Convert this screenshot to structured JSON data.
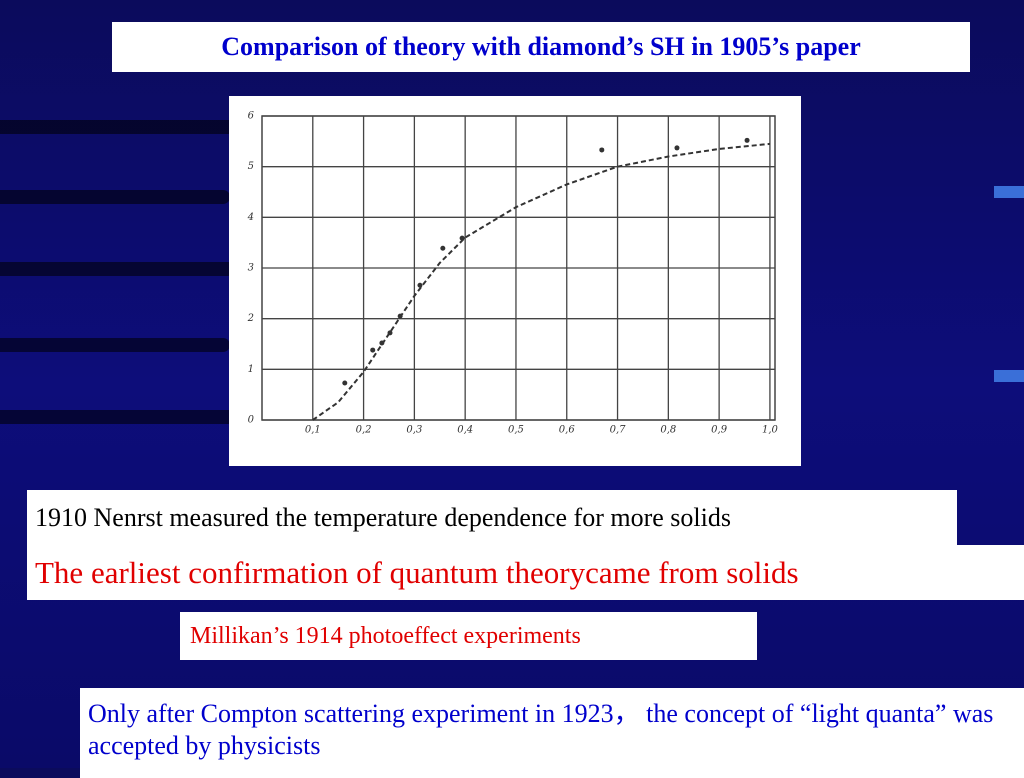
{
  "slide": {
    "title": "Comparison of theory with diamond’s SH in 1905’s paper",
    "notes": [
      "1910 Nenrst measured the temperature dependence for more solids",
      "The earliest confirmation of quantum theorycame from solids",
      "Millikan’s 1914 photoeffect experiments",
      "Only after Compton scattering experiment in 1923，  the concept of “light quanta” was accepted by physicists"
    ]
  },
  "chart_data": {
    "type": "line",
    "grid": true,
    "xlim": [
      0,
      1.01
    ],
    "ylim": [
      0,
      6
    ],
    "xticks": [
      {
        "value": 0.1,
        "label": "0,1"
      },
      {
        "value": 0.2,
        "label": "0,2"
      },
      {
        "value": 0.3,
        "label": "0,3"
      },
      {
        "value": 0.4,
        "label": "0,4"
      },
      {
        "value": 0.5,
        "label": "0,5"
      },
      {
        "value": 0.6,
        "label": "0,6"
      },
      {
        "value": 0.7,
        "label": "0,7"
      },
      {
        "value": 0.8,
        "label": "0,8"
      },
      {
        "value": 0.9,
        "label": "0,9"
      },
      {
        "value": 1.0,
        "label": "1,0"
      }
    ],
    "yticks": [
      0,
      1,
      2,
      3,
      4,
      5,
      6
    ],
    "series": [
      {
        "color": "#333333",
        "style": "dashed",
        "x": [
          0.1,
          0.15,
          0.2,
          0.25,
          0.3,
          0.35,
          0.4,
          0.5,
          0.6,
          0.7,
          0.8,
          0.9,
          1.0
        ],
        "values": [
          0,
          0.35,
          0.95,
          1.7,
          2.45,
          3.1,
          3.6,
          4.2,
          4.65,
          5.0,
          5.2,
          5.35,
          5.45
        ]
      },
      {
        "color": "#333333",
        "style": "points",
        "x": [
          0.163,
          0.218,
          0.236,
          0.252,
          0.272,
          0.311,
          0.356,
          0.394,
          0.669,
          0.817,
          0.955
        ],
        "values": [
          0.73,
          1.38,
          1.52,
          1.72,
          2.05,
          2.66,
          3.39,
          3.59,
          5.33,
          5.37,
          5.52
        ]
      }
    ]
  }
}
